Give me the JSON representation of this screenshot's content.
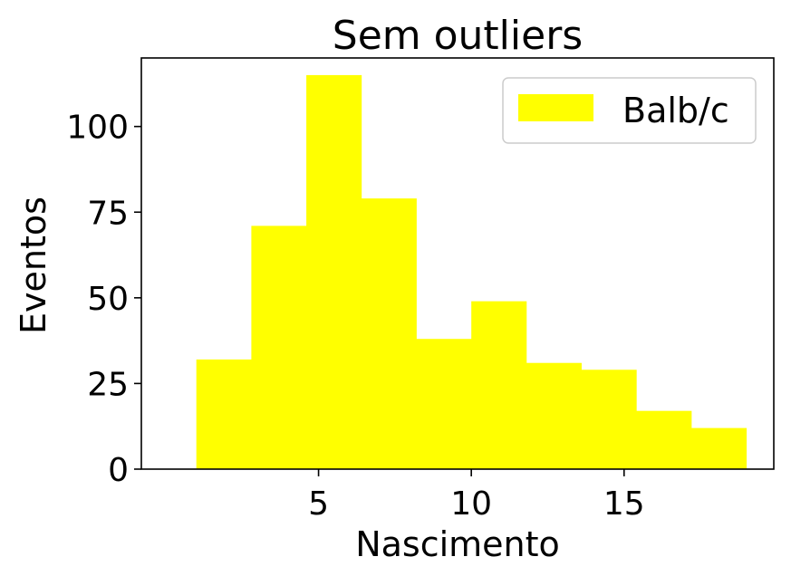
{
  "chart_data": {
    "type": "bar",
    "title": "Sem outliers",
    "xlabel": "Nascimento",
    "ylabel": "Eventos",
    "xlim": [
      -0.8,
      19.9
    ],
    "ylim": [
      0,
      120
    ],
    "xticks": [
      5,
      10,
      15
    ],
    "yticks": [
      0,
      25,
      50,
      75,
      100
    ],
    "xtick_labels": [
      "5",
      "10",
      "15"
    ],
    "ytick_labels": [
      "0",
      "25",
      "50",
      "75",
      "100"
    ],
    "bin_edges": [
      1.0,
      2.8,
      4.6,
      6.4,
      8.2,
      10.0,
      11.8,
      13.6,
      15.4,
      17.2,
      19.0
    ],
    "series": [
      {
        "name": "Balb/c",
        "color": "#ffff00",
        "values": [
          32,
          71,
          115,
          79,
          38,
          49,
          31,
          29,
          17,
          12
        ]
      }
    ],
    "legend_position": "top-right",
    "grid": false
  }
}
